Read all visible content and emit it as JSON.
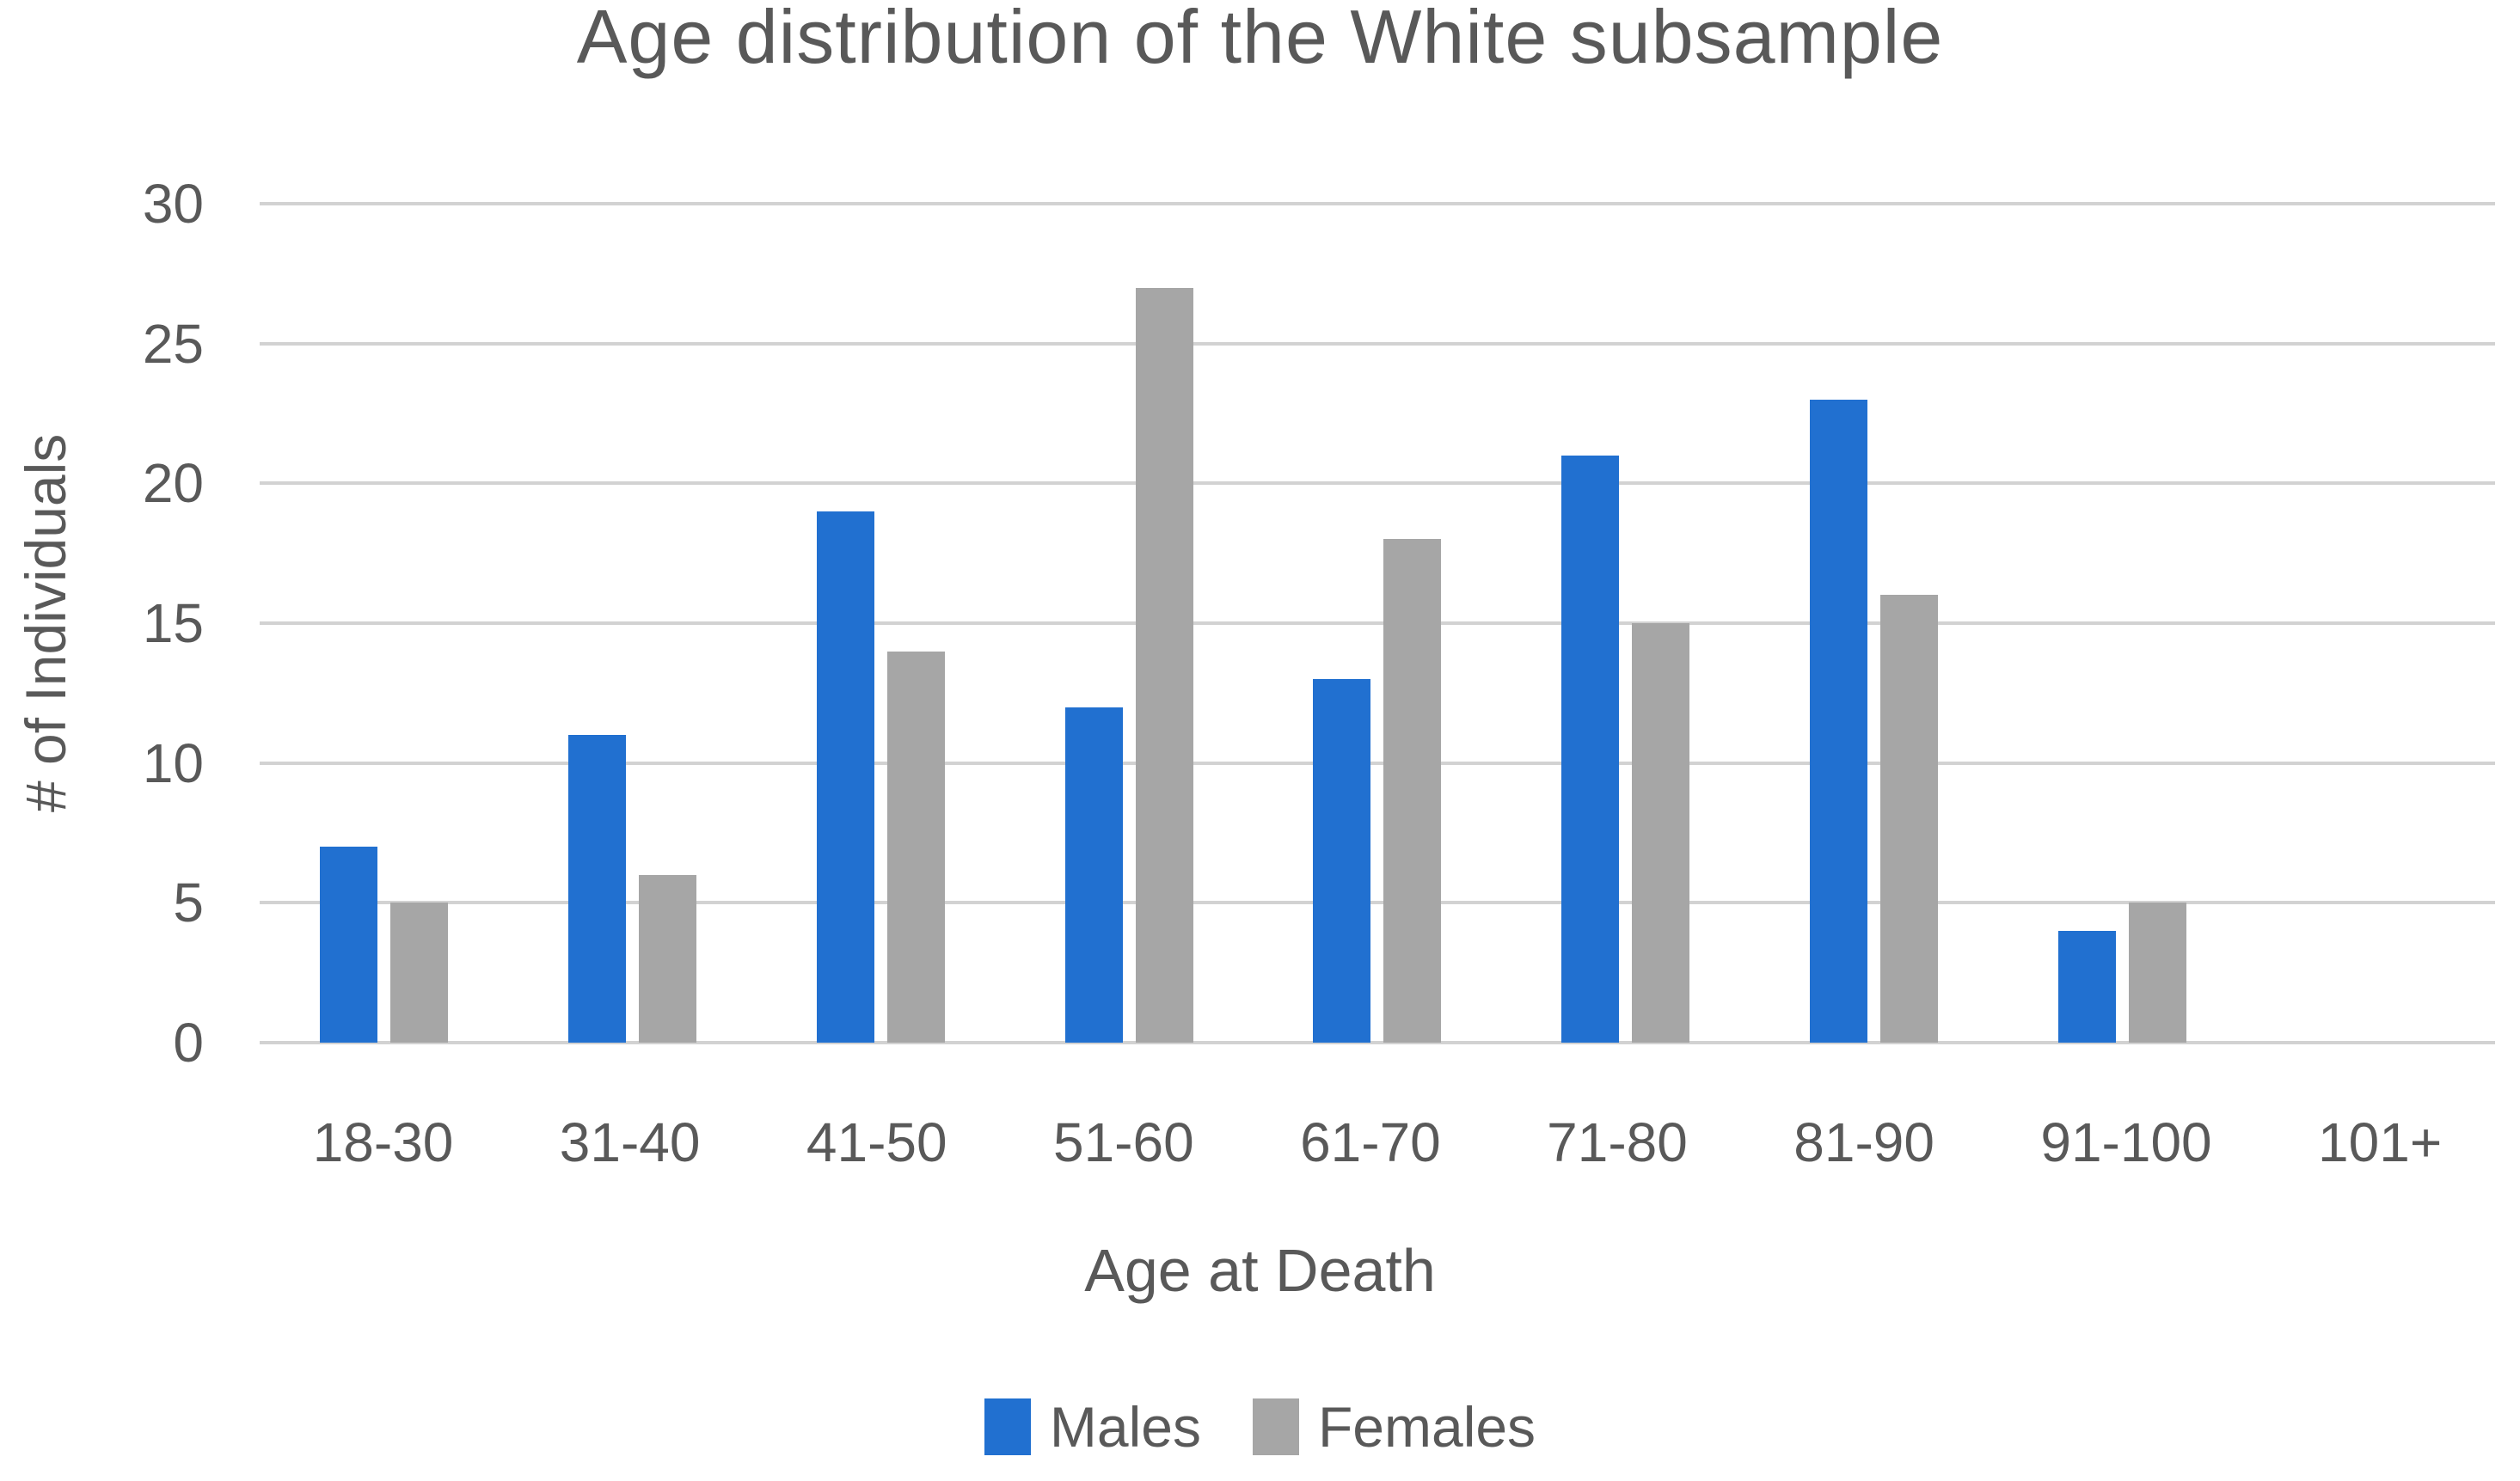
{
  "chart_data": {
    "type": "bar",
    "title": "Age distribution of the White subsample",
    "xlabel": "Age at Death",
    "ylabel": "# of Individuals",
    "categories": [
      "18-30",
      "31-40",
      "41-50",
      "51-60",
      "61-70",
      "71-80",
      "81-90",
      "91-100",
      "101+"
    ],
    "series": [
      {
        "name": "Males",
        "color": "#2170d0",
        "values": [
          7,
          11,
          19,
          12,
          13,
          21,
          23,
          4,
          0
        ]
      },
      {
        "name": "Females",
        "color": "#a6a6a6",
        "values": [
          5,
          6,
          14,
          27,
          18,
          15,
          16,
          5,
          0
        ]
      }
    ],
    "ylim": [
      0,
      30
    ],
    "ytick_step": 5,
    "ytick_labels": [
      "0",
      "5",
      "10",
      "15",
      "20",
      "25",
      "30"
    ],
    "grid": "horizontal",
    "grid_color": "#d2d2d2",
    "text_color": "#595959",
    "legend_position": "bottom"
  }
}
